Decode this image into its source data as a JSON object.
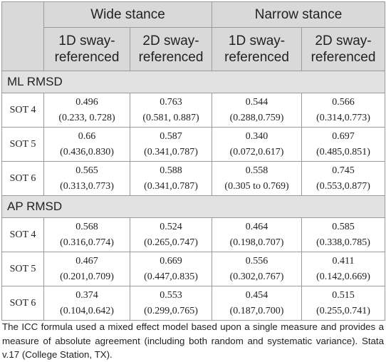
{
  "header": {
    "wide": "Wide stance",
    "narrow": "Narrow stance",
    "sub": [
      "1D sway-referenced",
      "2D sway-referenced",
      "1D sway-referenced",
      "2D sway-referenced"
    ]
  },
  "sections": [
    {
      "title": "ML RMSD",
      "rows": [
        {
          "label": "SOT 4",
          "cells": [
            [
              "0.496",
              "(0.233, 0.728)"
            ],
            [
              "0.763",
              "(0.581, 0.887)"
            ],
            [
              "0.544",
              "(0.288,0.759)"
            ],
            [
              "0.566",
              "(0.314,0.773)"
            ]
          ]
        },
        {
          "label": "SOT 5",
          "cells": [
            [
              "0.66",
              "(0.436,0.830)"
            ],
            [
              "0.587",
              "(0.341,0.787)"
            ],
            [
              "0.340",
              "(0.072,0.617)"
            ],
            [
              "0.697",
              "(0.485,0.851)"
            ]
          ]
        },
        {
          "label": "SOT 6",
          "cells": [
            [
              "0.565",
              "(0.313,0.773)"
            ],
            [
              "0.588",
              "(0.341,0.787)"
            ],
            [
              "0.558",
              "(0.305 to 0.769)"
            ],
            [
              "0.745",
              "(0.553,0.877)"
            ]
          ]
        }
      ]
    },
    {
      "title": "AP RMSD",
      "rows": [
        {
          "label": "SOT 4",
          "cells": [
            [
              "0.568",
              "(0.316,0.774)"
            ],
            [
              "0.524",
              "(0.265,0.747)"
            ],
            [
              "0.464",
              "(0.198,0.707)"
            ],
            [
              "0.585",
              "(0.338,0.785)"
            ]
          ]
        },
        {
          "label": "SOT 5",
          "cells": [
            [
              "0.467",
              "(0.201,0.709)"
            ],
            [
              "0.669",
              "(0.447,0.835)"
            ],
            [
              "0.556",
              "(0.302,0.767)"
            ],
            [
              "0.411",
              "(0.142,0.669)"
            ]
          ]
        },
        {
          "label": "SOT 6",
          "cells": [
            [
              "0.374",
              "(0.104,0.642)"
            ],
            [
              "0.553",
              "(0.299,0.765)"
            ],
            [
              "0.454",
              "(0.187,0.700)"
            ],
            [
              "0.515",
              "(0.255,0.741)"
            ]
          ]
        }
      ]
    }
  ],
  "footnote": "The ICC formula used a mixed effect model based upon a single measure and provides a measure of absolute agreement (including both random and systematic variance). Stata v.17 (College Station, TX)."
}
